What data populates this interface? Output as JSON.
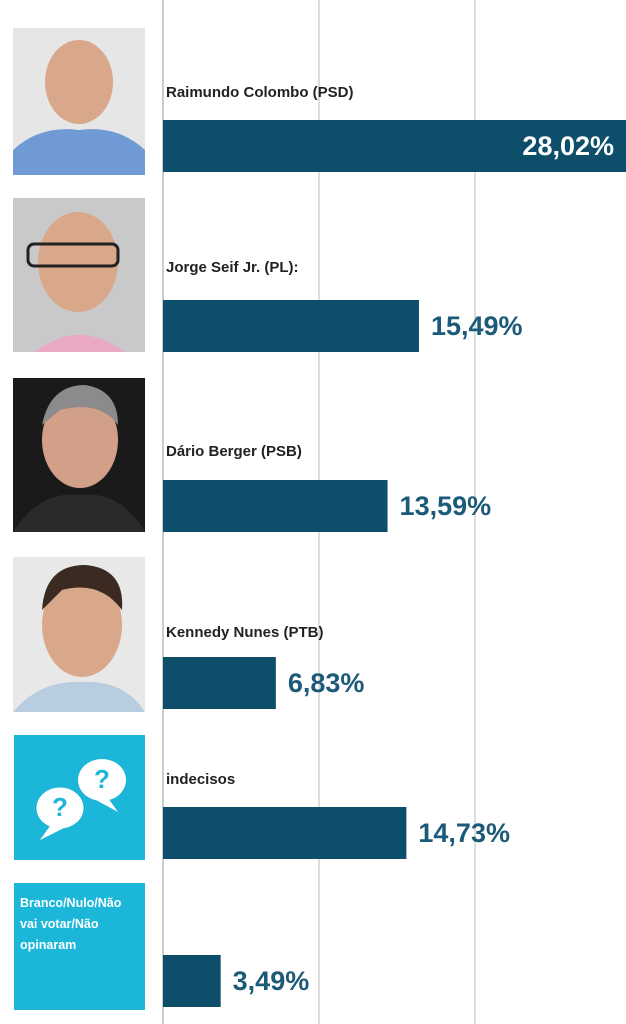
{
  "chart_data": {
    "type": "hbar",
    "categories": [
      "Raimundo Colombo (PSD)",
      "Jorge Seif Jr. (PL):",
      "Dário Berger (PSB)",
      "Kennedy Nunes (PTB)",
      "indecisos",
      "Branco/Nulo/Não vai votar/Não opinaram"
    ],
    "values": [
      28.02,
      15.49,
      13.59,
      6.83,
      14.73,
      3.49
    ],
    "value_labels": [
      "28,02%",
      "15,49%",
      "13,59%",
      "6,83%",
      "14,73%",
      "3,49%"
    ],
    "color": "#0d4e6a",
    "xlim": [
      0,
      28.02
    ]
  }
}
